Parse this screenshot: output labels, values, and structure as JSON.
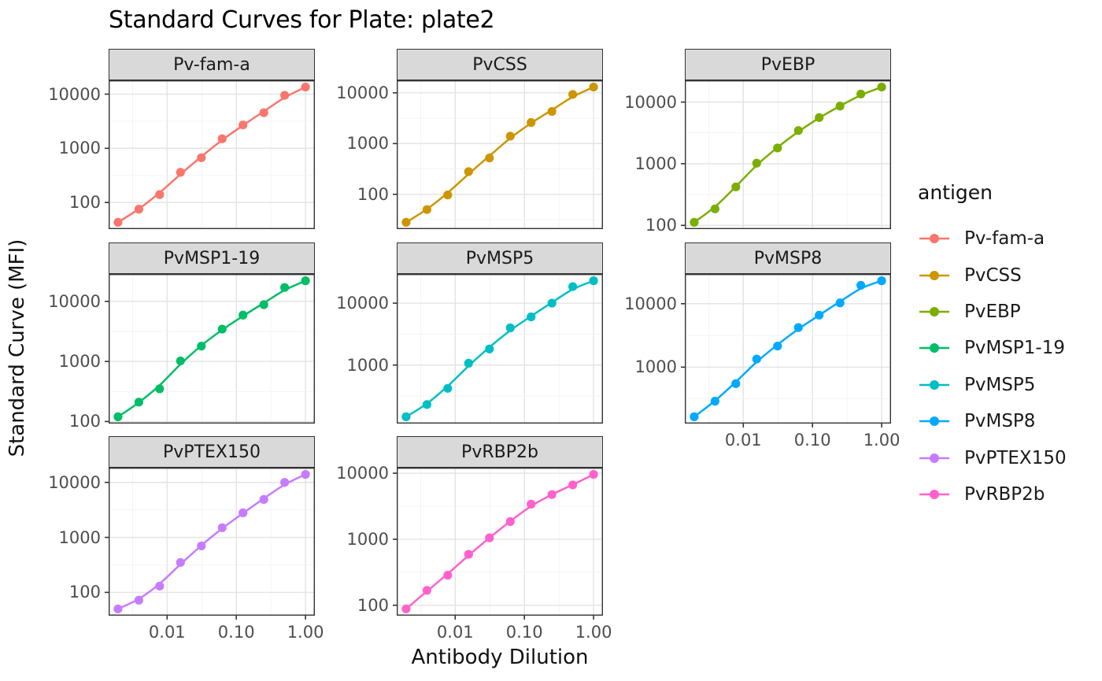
{
  "title": "Standard Curves for Plate: plate2",
  "axes": {
    "x_label": "Antibody Dilution",
    "y_label": "Standard Curve (MFI)",
    "x_tick_labels": [
      "0.01",
      "0.10",
      "1.00"
    ],
    "x_tick_values": [
      0.01,
      0.1,
      1
    ],
    "y_tick_values": [
      100,
      1000,
      10000
    ]
  },
  "legend": {
    "title": "antigen",
    "entries": [
      {
        "label": "Pv-fam-a",
        "color": "#F8766D"
      },
      {
        "label": "PvCSS",
        "color": "#CD9600"
      },
      {
        "label": "PvEBP",
        "color": "#7CAE00"
      },
      {
        "label": "PvMSP1-19",
        "color": "#00BE67"
      },
      {
        "label": "PvMSP5",
        "color": "#00BFC4"
      },
      {
        "label": "PvMSP8",
        "color": "#00A9FF"
      },
      {
        "label": "PvPTEX150",
        "color": "#C77CFF"
      },
      {
        "label": "PvRBP2b",
        "color": "#FF61CC"
      }
    ]
  },
  "chart_data": {
    "type": "scatter",
    "title": "Standard Curves for Plate: plate2",
    "xlabel": "Antibody Dilution",
    "ylabel": "Standard Curve (MFI)",
    "x_scale": "log10",
    "y_scale": "log10",
    "scales": "free_y",
    "grid": true,
    "legend_position": "right",
    "facet_by": "antigen",
    "facet_columns": 3,
    "x_dilutions": [
      0.00195,
      0.0039,
      0.0078,
      0.0156,
      0.03125,
      0.0625,
      0.125,
      0.25,
      0.5,
      1.0
    ],
    "series": [
      {
        "name": "Pv-fam-a",
        "color": "#F8766D",
        "smooth_line": true,
        "mfi": [
          43,
          75,
          140,
          360,
          670,
          1500,
          2700,
          4550,
          9500,
          13500
        ]
      },
      {
        "name": "PvCSS",
        "color": "#CD9600",
        "smooth_line": true,
        "mfi": [
          28,
          50,
          97,
          280,
          520,
          1400,
          2600,
          4300,
          9300,
          13000
        ]
      },
      {
        "name": "PvEBP",
        "color": "#7CAE00",
        "smooth_line": true,
        "mfi": [
          112,
          185,
          420,
          1020,
          1800,
          3450,
          5600,
          8600,
          13500,
          17500
        ]
      },
      {
        "name": "PvMSP1-19",
        "color": "#00BE67",
        "smooth_line": true,
        "mfi": [
          120,
          210,
          350,
          1020,
          1800,
          3450,
          5900,
          8800,
          17000,
          22000
        ]
      },
      {
        "name": "PvMSP5",
        "color": "#00BFC4",
        "smooth_line": true,
        "mfi": [
          146,
          230,
          420,
          1070,
          1820,
          3980,
          6000,
          10000,
          18500,
          23000
        ]
      },
      {
        "name": "PvMSP8",
        "color": "#00A9FF",
        "smooth_line": true,
        "mfi": [
          165,
          290,
          550,
          1340,
          2150,
          4200,
          6600,
          10300,
          19500,
          23000
        ]
      },
      {
        "name": "PvPTEX150",
        "color": "#C77CFF",
        "smooth_line": true,
        "mfi": [
          50,
          72,
          130,
          350,
          700,
          1500,
          2800,
          4900,
          10000,
          14000
        ]
      },
      {
        "name": "PvRBP2b",
        "color": "#FF61CC",
        "smooth_line": true,
        "mfi": [
          88,
          168,
          285,
          590,
          1050,
          1850,
          3400,
          4750,
          6650,
          9600
        ]
      }
    ]
  },
  "style": {
    "panel_bg": "#ffffff",
    "panel_border": "#333333",
    "strip_bg": "#d9d9d9",
    "grid_major": "#e3e3e3",
    "grid_minor": "#f1f1f1",
    "tick_color": "#333333",
    "tick_label_color": "#4d4d4d",
    "text_color": "#1a1a1a"
  }
}
